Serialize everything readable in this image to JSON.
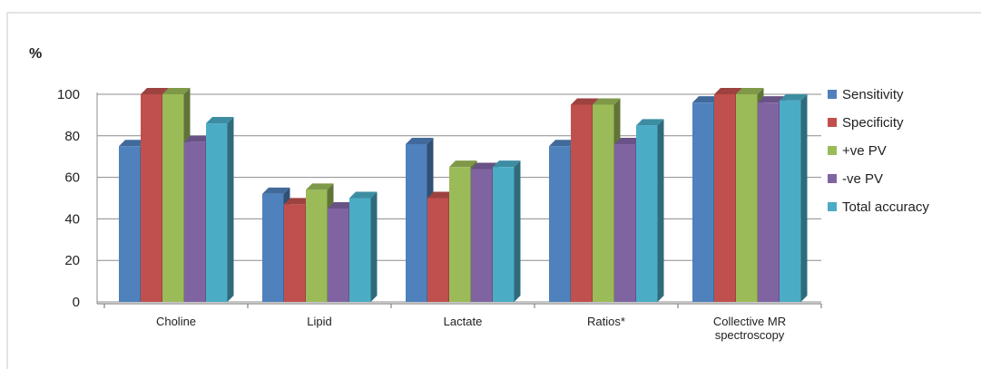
{
  "colors": {
    "background": "#ffffff",
    "grid": "#8c8c8c",
    "frame_border": "#c8c8c8",
    "sensitivity": "#4F81BD",
    "specificity": "#C0504D",
    "pos_pv": "#9BBB59",
    "neg_pv": "#8064A2",
    "total_accuracy": "#4BACC6"
  },
  "chart_data": {
    "type": "bar",
    "title": "",
    "ylabel": "%",
    "xlabel": "",
    "ylim": [
      0,
      100
    ],
    "yticks": [
      "0",
      "20",
      "40",
      "60",
      "80",
      "100"
    ],
    "grid": true,
    "legend_position": "right",
    "categories": [
      "Choline",
      "Lipid",
      "Lactate",
      "Ratios*",
      "Collective MR spectroscopy"
    ],
    "series": [
      {
        "name": "Sensitivity",
        "color": "#4F81BD",
        "values": [
          75,
          52,
          76,
          75,
          96
        ]
      },
      {
        "name": "Specificity",
        "color": "#C0504D",
        "values": [
          100,
          47,
          50,
          95,
          100
        ]
      },
      {
        "name": "+ve PV",
        "color": "#9BBB59",
        "values": [
          100,
          54,
          65,
          95,
          100
        ]
      },
      {
        "name": "-ve PV",
        "color": "#8064A2",
        "values": [
          77,
          45,
          64,
          76,
          96
        ]
      },
      {
        "name": "Total accuracy",
        "color": "#4BACC6",
        "values": [
          86,
          50,
          65,
          85,
          97
        ]
      }
    ]
  }
}
